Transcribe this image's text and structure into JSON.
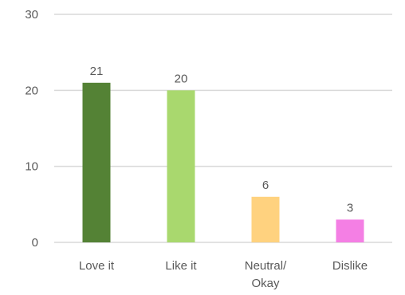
{
  "chart_data": {
    "type": "bar",
    "categories": [
      "Love it",
      "Like it",
      "Neutral/ Okay",
      "Dislike"
    ],
    "category_lines": [
      [
        "Love it"
      ],
      [
        "Like it"
      ],
      [
        "Neutral/",
        "Okay"
      ],
      [
        "Dislike"
      ]
    ],
    "values": [
      21,
      20,
      6,
      3
    ],
    "data_labels": [
      "21",
      "20",
      "6",
      "3"
    ],
    "colors": [
      "#548235",
      "#a9d86e",
      "#ffd27f",
      "#f47fe4"
    ],
    "ylim": [
      0,
      30
    ],
    "yticks": [
      0,
      10,
      20,
      30
    ],
    "grid": true,
    "title": "",
    "xlabel": "",
    "ylabel": ""
  }
}
